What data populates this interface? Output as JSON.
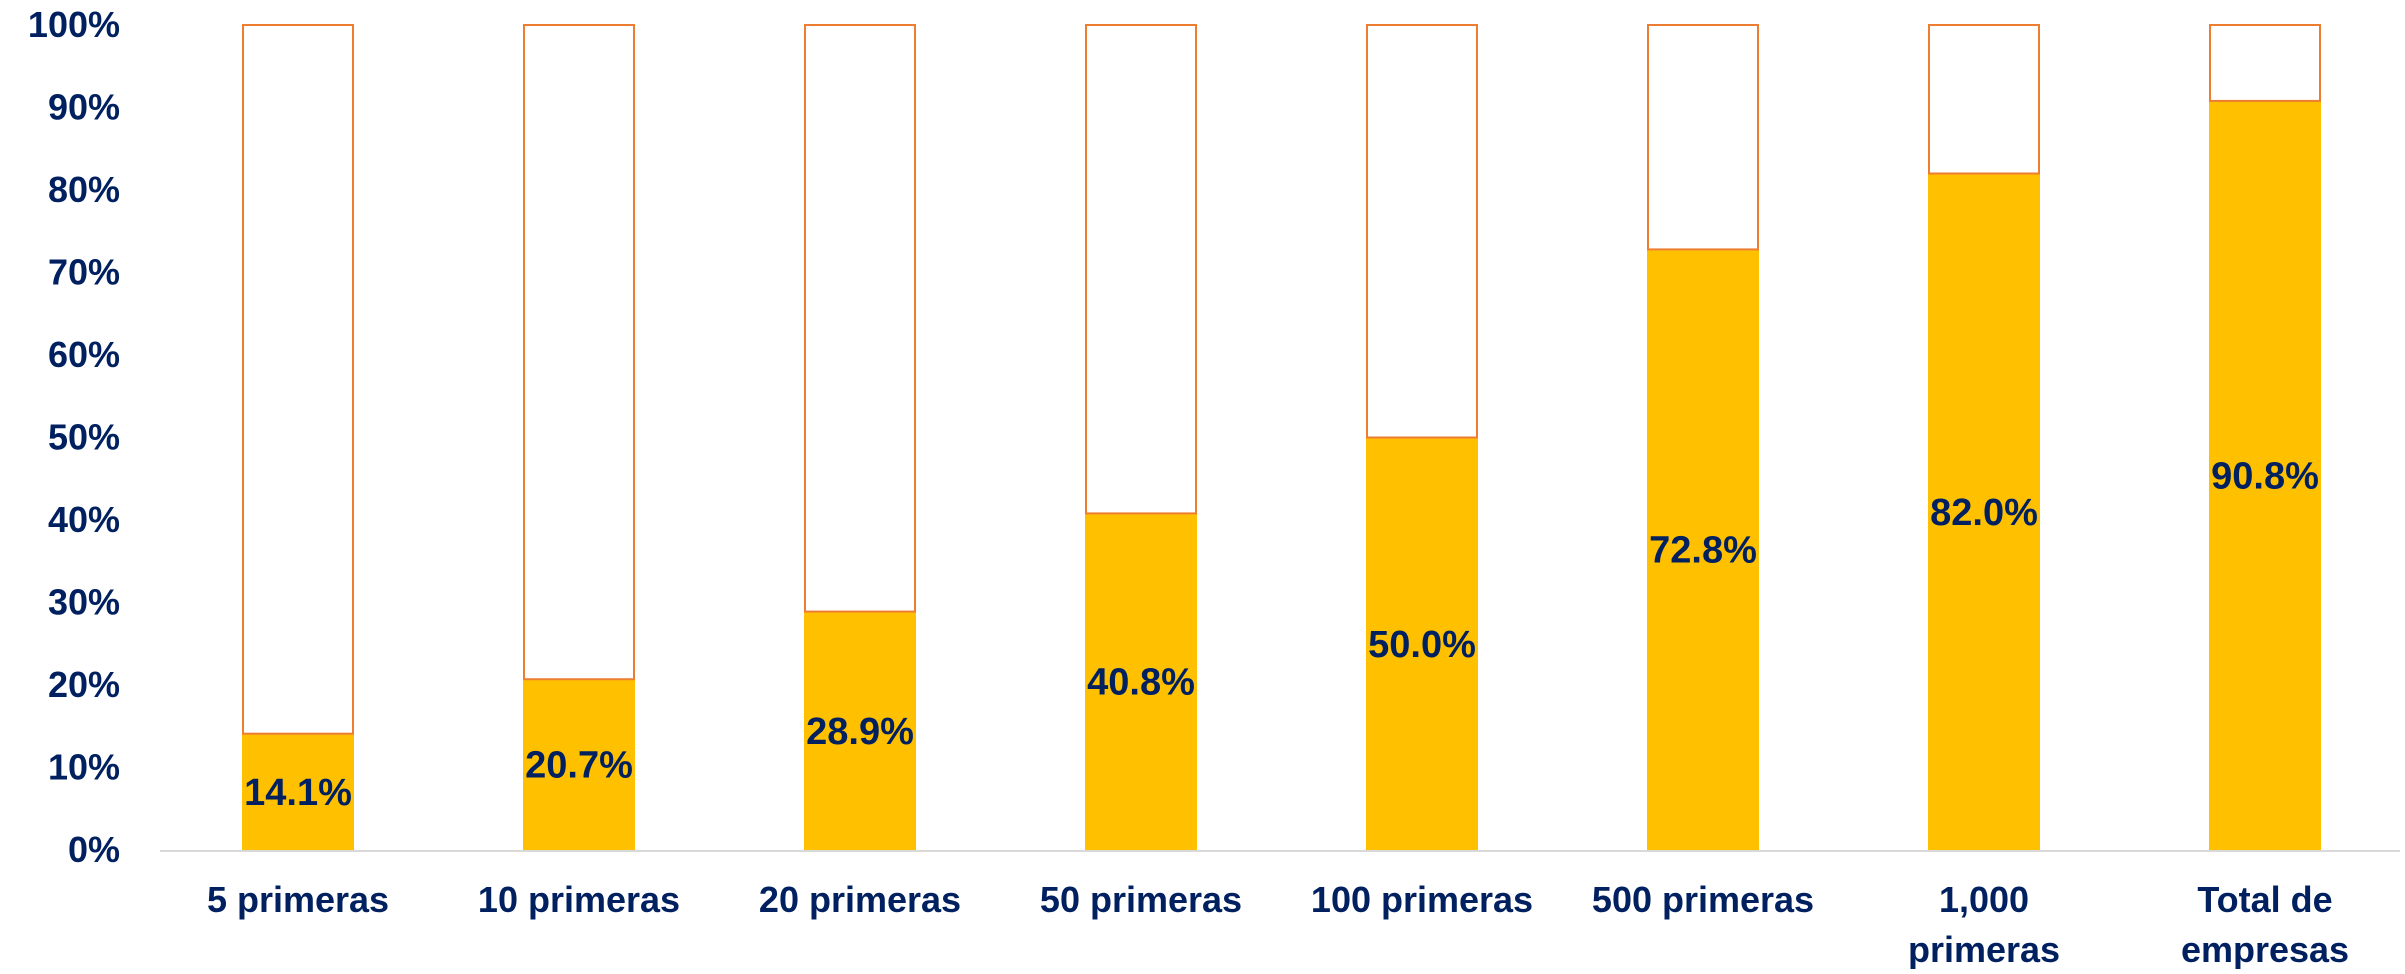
{
  "chart_data": {
    "type": "bar",
    "stacked": true,
    "title": "",
    "xlabel": "",
    "ylabel": "",
    "ylim": [
      0,
      100
    ],
    "y_ticks": [
      "0%",
      "10%",
      "20%",
      "30%",
      "40%",
      "50%",
      "60%",
      "70%",
      "80%",
      "90%",
      "100%"
    ],
    "grid": false,
    "legend": "none",
    "categories": [
      [
        "5 primeras"
      ],
      [
        "10 primeras"
      ],
      [
        "20 primeras"
      ],
      [
        "50 primeras"
      ],
      [
        "100 primeras"
      ],
      [
        "500 primeras"
      ],
      [
        "1,000",
        "primeras"
      ],
      [
        "Total de",
        "empresas"
      ]
    ],
    "series": [
      {
        "values": [
          14.1,
          20.7,
          28.9,
          40.8,
          50.0,
          72.8,
          82.0,
          90.8
        ],
        "labels": [
          "14.1%",
          "20.7%",
          "28.9%",
          "40.8%",
          "50.0%",
          "72.8%",
          "82.0%",
          "90.8%"
        ],
        "color": "#FFC000"
      },
      {
        "values": [
          85.9,
          79.3,
          71.1,
          59.2,
          50.0,
          27.2,
          18.0,
          9.2
        ],
        "color": "#FFFFFF",
        "stroke": "#ED7D31"
      }
    ],
    "label_color": "#002060",
    "axis_color": "#D9D9D9"
  }
}
